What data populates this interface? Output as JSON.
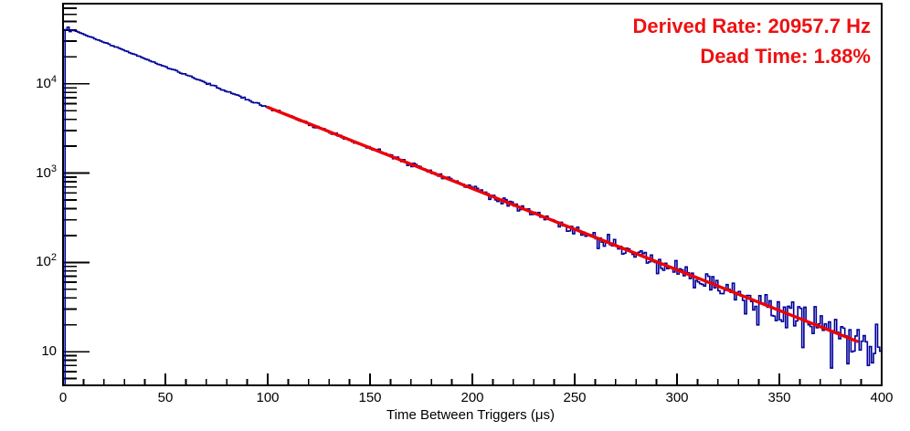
{
  "window": {
    "background": "#ffffff",
    "frame_color": "#000000"
  },
  "annotations": {
    "derived_rate": "Derived Rate: 20957.7 Hz",
    "dead_time": "Dead Time: 1.88%",
    "text_color": "#ee1111"
  },
  "chart_data": {
    "type": "line",
    "style": "step-histogram",
    "title": "",
    "xlabel": "Time Between Triggers (μs)",
    "ylabel": "",
    "grid": false,
    "legend": "none",
    "x_axis": {
      "min": 0,
      "max": 400,
      "major_tick_step": 50,
      "minor_tick_step": 10,
      "tick_labels": [
        "0",
        "50",
        "100",
        "150",
        "200",
        "250",
        "300",
        "350",
        "400"
      ]
    },
    "y_axis": {
      "scale": "log",
      "min": 4.2,
      "max": 79000,
      "decade_labels": [
        {
          "text": "10",
          "exp": "4",
          "value": 10000
        },
        {
          "text": "10",
          "exp": "3",
          "value": 1000
        },
        {
          "text": "10",
          "exp": "2",
          "value": 100
        },
        {
          "text": "10",
          "exp": "",
          "value": 10
        }
      ]
    },
    "histogram": {
      "color": "#000099",
      "line_width": 1.6,
      "bin_width_us": 1,
      "n_bins": 400,
      "model": {
        "form": "A*exp(-t/tau)",
        "A": 44400,
        "tau_us": 47.715
      },
      "head_bins_counts": [
        40400,
        43000,
        38500,
        39700,
        39500,
        38800
      ],
      "noise": "poisson"
    },
    "fit": {
      "color": "#ee0000",
      "line_width": 3.4,
      "range_us": [
        100,
        388
      ],
      "model": {
        "form": "A*exp(-t/tau)",
        "A": 44400,
        "tau_us": 47.715
      }
    },
    "sampled_points": {
      "t_us": [
        0,
        25,
        50,
        75,
        100,
        125,
        150,
        175,
        200,
        225,
        250,
        275,
        300,
        325,
        350,
        375,
        400
      ],
      "counts": [
        44400,
        26300,
        15600,
        9220,
        5460,
        3230,
        1910,
        1130,
        671,
        397,
        235,
        139,
        83,
        49,
        29,
        17,
        10
      ]
    },
    "derived": {
      "rate_hz": 20957.7,
      "dead_time_pct": 1.88
    }
  }
}
